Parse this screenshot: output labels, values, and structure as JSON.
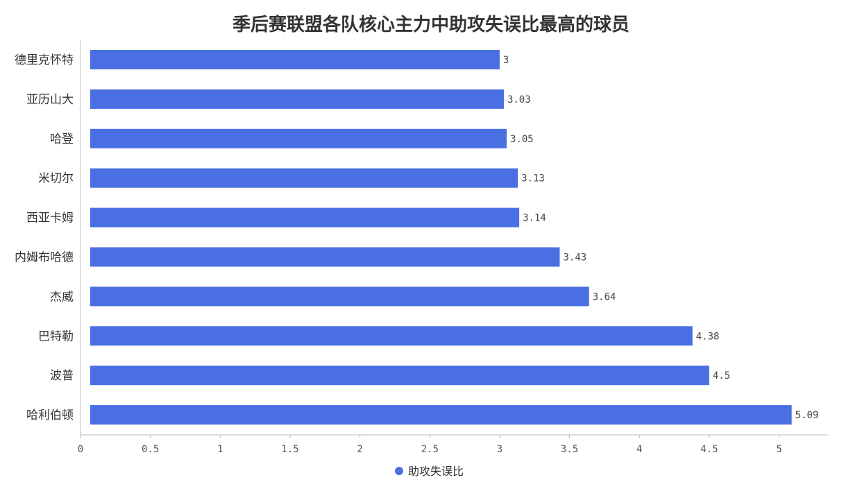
{
  "chart_data": {
    "type": "bar",
    "orientation": "horizontal",
    "title": "季后赛联盟各队核心主力中助攻失误比最高的球员",
    "categories": [
      "德里克怀特",
      "亚历山大",
      "哈登",
      "米切尔",
      "西亚卡姆",
      "内姆布哈德",
      "杰威",
      "巴特勒",
      "波普",
      "哈利伯顿"
    ],
    "series": [
      {
        "name": "助攻失误比",
        "values": [
          3,
          3.03,
          3.05,
          3.13,
          3.14,
          3.43,
          3.64,
          4.38,
          4.5,
          5.09
        ],
        "labels": [
          "3",
          "3.03",
          "3.05",
          "3.13",
          "3.14",
          "3.43",
          "3.64",
          "4.38",
          "4.5",
          "5.09"
        ],
        "color": "#4a6fe3"
      }
    ],
    "x_ticks": [
      "0",
      "0.5",
      "1",
      "1.5",
      "2",
      "2.5",
      "3",
      "3.5",
      "4",
      "4.5",
      "5"
    ],
    "xlim": [
      0,
      5.35
    ],
    "grid": false,
    "legend": "bottom-center"
  }
}
